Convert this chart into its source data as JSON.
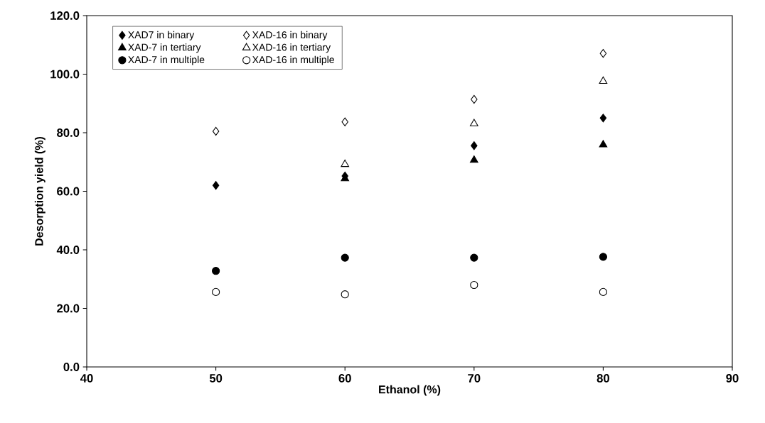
{
  "chart_data": {
    "type": "scatter",
    "xlabel": "Ethanol (%)",
    "ylabel": "Desorption yield (%)",
    "x": [
      50,
      60,
      70,
      80
    ],
    "series": [
      {
        "name": "XAD7 in binary",
        "color": "#000000",
        "marker": "diamond",
        "values": [
          62.0,
          65.2,
          75.6,
          85.0
        ]
      },
      {
        "name": "XAD-16 in binary",
        "color": "#ffffff",
        "marker": "diamond",
        "values": [
          80.5,
          83.7,
          91.4,
          107.1
        ]
      },
      {
        "name": "XAD-7 in tertiary",
        "color": "#000000",
        "marker": "triangle",
        "values": [
          null,
          64.3,
          70.6,
          75.9
        ]
      },
      {
        "name": "XAD-16 in tertiary",
        "color": "#ffffff",
        "marker": "triangle",
        "values": [
          null,
          69.2,
          83.1,
          97.6
        ]
      },
      {
        "name": "XAD-7 in multiple",
        "color": "#000000",
        "marker": "circle",
        "values": [
          32.8,
          37.3,
          37.3,
          37.6
        ]
      },
      {
        "name": "XAD-16 in multiple",
        "color": "#ffffff",
        "marker": "circle",
        "values": [
          25.6,
          24.8,
          28.0,
          25.6
        ]
      }
    ],
    "xlim": [
      40,
      90
    ],
    "xticks": [
      40,
      50,
      60,
      70,
      80,
      90
    ],
    "ylim": [
      0,
      120
    ],
    "yticks": [
      {
        "value": 0,
        "label": "0.0"
      },
      {
        "value": 20,
        "label": "20.0"
      },
      {
        "value": 40,
        "label": "40.0"
      },
      {
        "value": 60,
        "label": "60.0"
      },
      {
        "value": 80,
        "label": "80.0"
      },
      {
        "value": 100,
        "label": "100.0"
      },
      {
        "value": 120,
        "label": "120.0"
      }
    ],
    "grid": false,
    "legend": "top left"
  }
}
